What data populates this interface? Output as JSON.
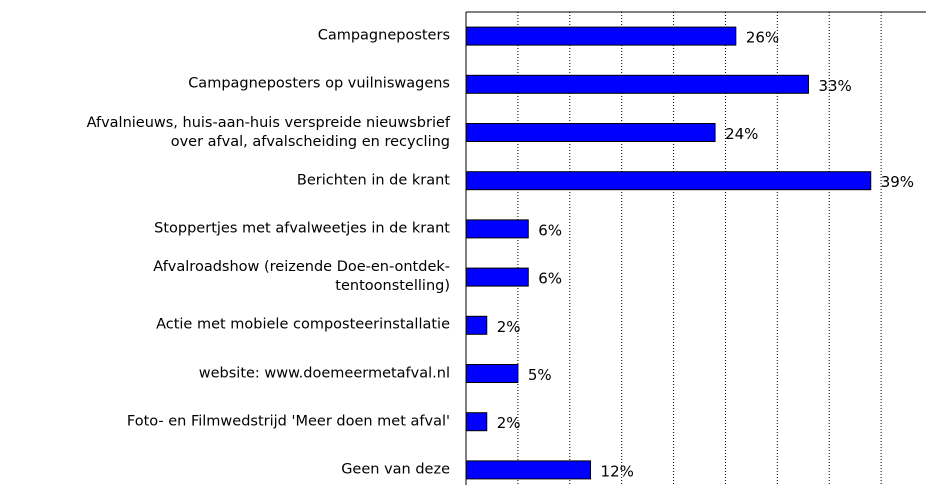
{
  "chart_data": {
    "type": "bar",
    "orientation": "horizontal",
    "categories": [
      "Campagneposters",
      "Campagneposters op vuilniswagens",
      "Afvalnieuws, huis-aan-huis verspreide nieuwsbrief\nover afval, afvalscheiding en recycling",
      "Berichten in de krant",
      "Stoppertjes met afvalweetjes in de krant",
      "Afvalroadshow (reizende Doe-en-ontdek-\ntentoonstelling)",
      "Actie met mobiele composteerinstallatie",
      "website: www.doemeermetafval.nl",
      "Foto- en Filmwedstrijd 'Meer doen met afval'",
      "Geen van deze"
    ],
    "values": [
      26,
      33,
      24,
      39,
      6,
      6,
      2,
      5,
      2,
      12
    ],
    "value_labels": [
      "26%",
      "33%",
      "24%",
      "39%",
      "6%",
      "6%",
      "2%",
      "5%",
      "2%",
      "12%"
    ],
    "color": "#0000ff",
    "xlim": [
      0,
      45
    ],
    "xticks": [
      0,
      5,
      10,
      15,
      20,
      25,
      30,
      35,
      40,
      45
    ],
    "grid": true
  }
}
